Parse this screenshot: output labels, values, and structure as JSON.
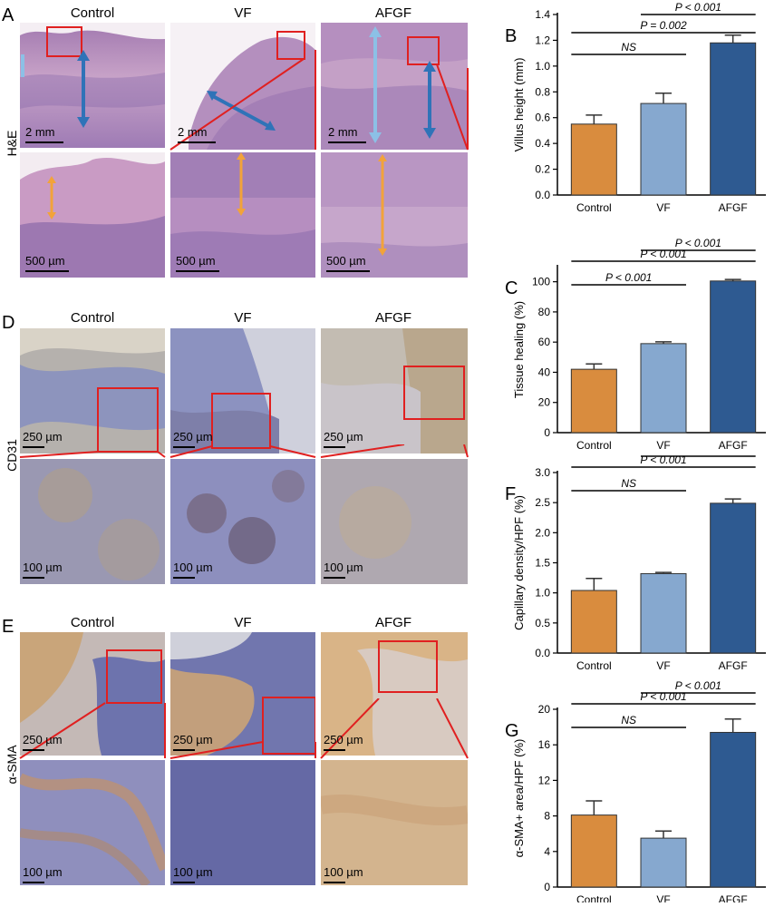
{
  "panels": {
    "A": {
      "letter": "A",
      "columns": [
        "Control",
        "VF",
        "AFGF"
      ],
      "row_label": "H&E",
      "top_scale": "2 mm",
      "bottom_scale": "500 µm"
    },
    "D": {
      "letter": "D",
      "columns": [
        "Control",
        "VF",
        "AFGF"
      ],
      "row_label": "CD31",
      "top_scale": "250 µm",
      "bottom_scale": "100 µm"
    },
    "E": {
      "letter": "E",
      "columns": [
        "Control",
        "VF",
        "AFGF"
      ],
      "row_label": "α-SMA",
      "top_scale": "250 µm",
      "bottom_scale": "100 µm"
    }
  },
  "colors": {
    "control": "#d98c3e",
    "vf": "#86a8cf",
    "afgf": "#2e5a91",
    "he_stain": "#b98bbd",
    "ihc_brown": "#c9a57a",
    "ihc_blue": "#7d86b8",
    "inset_box": "#e02020",
    "arrow_dark": "#2f73b8",
    "arrow_light": "#8cc0e6",
    "arrow_orange": "#f2a33a"
  },
  "chart_data": [
    {
      "letter": "B",
      "type": "bar",
      "categories": [
        "Control",
        "VF",
        "AFGF"
      ],
      "values": [
        0.55,
        0.71,
        1.18
      ],
      "errors": [
        0.07,
        0.08,
        0.06
      ],
      "ylabel": "Villus height (mm)",
      "ylim": [
        0,
        1.4
      ],
      "ticks": [
        "0.0",
        "0.2",
        "0.4",
        "0.6",
        "0.8",
        "1.0",
        "1.2",
        "1.4"
      ],
      "annotations": [
        {
          "text": "NS",
          "from": 0,
          "to": 1
        },
        {
          "text": "P = 0.002",
          "from": 0,
          "to": 2
        },
        {
          "text": "P < 0.001",
          "from": 1,
          "to": 2
        }
      ]
    },
    {
      "letter": "C",
      "type": "bar",
      "categories": [
        "Control",
        "VF",
        "AFGF"
      ],
      "values": [
        42,
        59,
        100.5
      ],
      "errors": [
        3.5,
        1.2,
        1.0
      ],
      "ylabel": "Tissue healing (%)",
      "ylim": [
        0,
        110
      ],
      "ticks": [
        "0",
        "20",
        "40",
        "60",
        "80",
        "100"
      ],
      "annotations": [
        {
          "text": "P < 0.001",
          "from": 0,
          "to": 1
        },
        {
          "text": "P < 0.001",
          "from": 0,
          "to": 2
        },
        {
          "text": "P < 0.001",
          "from": 1,
          "to": 2
        }
      ]
    },
    {
      "letter": "F",
      "type": "bar",
      "categories": [
        "Control",
        "VF",
        "AFGF"
      ],
      "values": [
        1.04,
        1.32,
        2.49
      ],
      "errors": [
        0.2,
        0.02,
        0.07
      ],
      "ylabel": "Capillary density/HPF (%)",
      "ylim": [
        0,
        3.0
      ],
      "ticks": [
        "0.0",
        "0.5",
        "1.0",
        "1.5",
        "2.0",
        "2.5",
        "3.0"
      ],
      "annotations": [
        {
          "text": "NS",
          "from": 0,
          "to": 1
        },
        {
          "text": "P < 0.001",
          "from": 0,
          "to": 2
        },
        {
          "text": "P < 0.001",
          "from": 1,
          "to": 2
        }
      ]
    },
    {
      "letter": "G",
      "type": "bar",
      "categories": [
        "Control",
        "VF",
        "AFGF"
      ],
      "values": [
        8.1,
        5.5,
        17.4
      ],
      "errors": [
        1.6,
        0.8,
        1.5
      ],
      "ylabel": "α-SMA+ area/HPF (%)",
      "ylim": [
        0,
        20
      ],
      "ticks": [
        "0",
        "4",
        "8",
        "12",
        "16",
        "20"
      ],
      "annotations": [
        {
          "text": "NS",
          "from": 0,
          "to": 1
        },
        {
          "text": "P < 0.001",
          "from": 0,
          "to": 2
        },
        {
          "text": "P < 0.001",
          "from": 1,
          "to": 2
        }
      ]
    }
  ]
}
